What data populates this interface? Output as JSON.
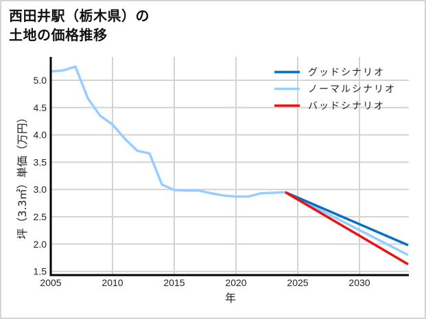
{
  "title": {
    "line1": "西田井駅（栃木県）の",
    "line2": "土地の価格推移"
  },
  "colors": {
    "good": "#0a6fc2",
    "normal": "#99ccff",
    "bad": "#ee1111",
    "grid": "#d3d3d3",
    "axis": "#000000",
    "frame": "#d4d4d4"
  },
  "chart_data": {
    "type": "line",
    "title": "西田井駅（栃木県）の土地の価格推移",
    "xlabel": "年",
    "ylabel": "坪（3.3㎡）単価（万円）",
    "xlim": [
      2005,
      2034
    ],
    "ylim": [
      1.5,
      5.43
    ],
    "xticks": [
      2005,
      2010,
      2015,
      2020,
      2025,
      2030
    ],
    "yticks": [
      1.5,
      2.0,
      2.5,
      3.0,
      3.5,
      4.0,
      4.5,
      5.0
    ],
    "ytick_labels": [
      "1.5",
      "2.0",
      "2.5",
      "3.0",
      "3.5",
      "4.0",
      "4.5",
      "5.0"
    ],
    "grid": true,
    "legend_position": "upper right",
    "series": [
      {
        "name": "グッドシナリオ",
        "color": "#0a6fc2",
        "x": [
          2024,
          2034
        ],
        "values": [
          2.95,
          1.98
        ]
      },
      {
        "name": "ノーマルシナリオ",
        "color": "#99ccff",
        "x": [
          2005,
          2006,
          2007,
          2008,
          2009,
          2010,
          2011,
          2012,
          2013,
          2014,
          2015,
          2016,
          2017,
          2018,
          2019,
          2020,
          2021,
          2022,
          2023,
          2024,
          2034
        ],
        "values": [
          5.16,
          5.18,
          5.25,
          4.67,
          4.35,
          4.19,
          3.93,
          3.71,
          3.66,
          3.09,
          2.99,
          2.98,
          2.98,
          2.93,
          2.89,
          2.87,
          2.87,
          2.93,
          2.94,
          2.95,
          1.8
        ]
      },
      {
        "name": "バッドシナリオ",
        "color": "#ee1111",
        "x": [
          2024,
          2034
        ],
        "values": [
          2.95,
          1.63
        ]
      }
    ]
  },
  "legend": [
    {
      "label": "グッドシナリオ",
      "color": "#0a6fc2"
    },
    {
      "label": "ノーマルシナリオ",
      "color": "#99ccff"
    },
    {
      "label": "バッドシナリオ",
      "color": "#ee1111"
    }
  ]
}
